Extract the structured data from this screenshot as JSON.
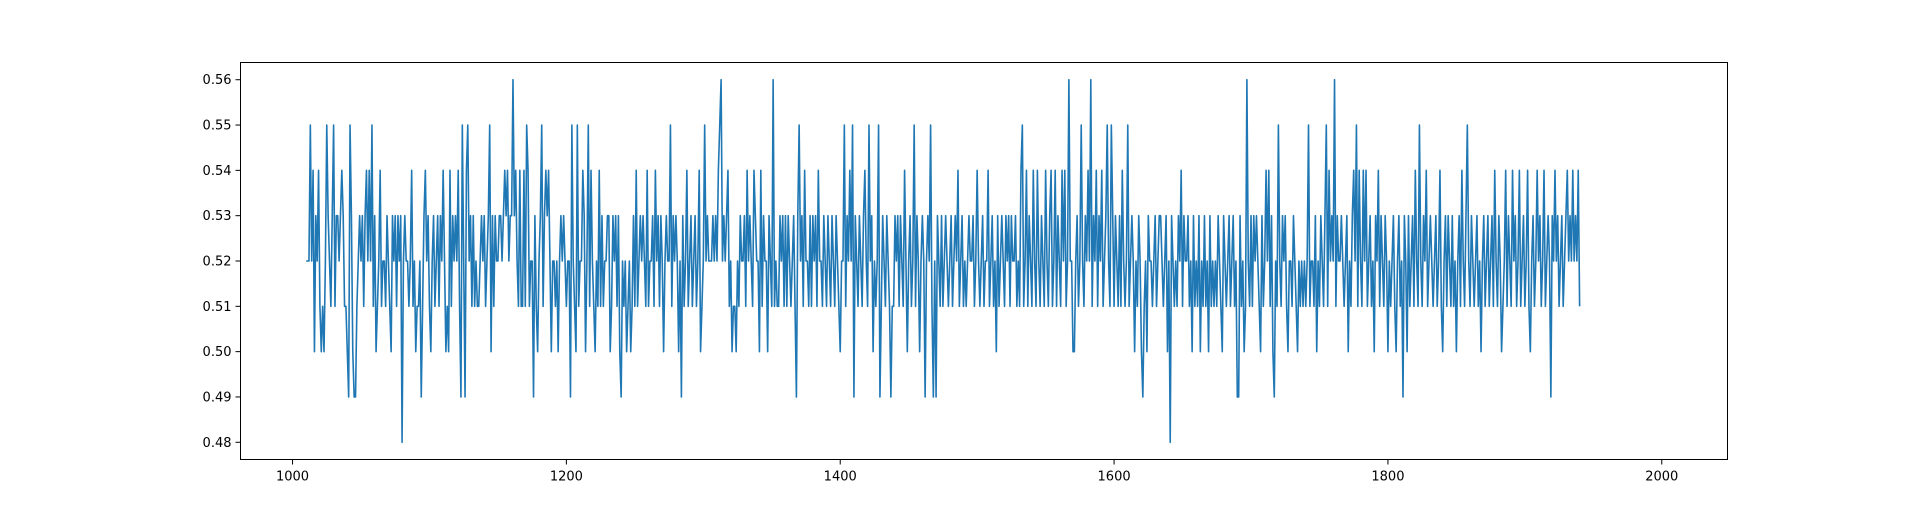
{
  "chart_data": {
    "type": "line",
    "title": "",
    "xlabel": "",
    "ylabel": "",
    "xlim": [
      962,
      2048
    ],
    "ylim": [
      0.4762,
      0.5638
    ],
    "grid": false,
    "legend": "none",
    "xticks": [
      1000,
      1200,
      1400,
      1600,
      1800,
      2000
    ],
    "yticks": [
      0.48,
      0.49,
      0.5,
      0.51,
      0.52,
      0.53,
      0.54,
      0.55,
      0.56
    ],
    "xtick_labels": [
      "1000",
      "1200",
      "1400",
      "1600",
      "1800",
      "2000"
    ],
    "ytick_labels": [
      "0.48",
      "0.49",
      "0.50",
      "0.51",
      "0.52",
      "0.53",
      "0.54",
      "0.55",
      "0.56"
    ],
    "series": [
      {
        "color": "#1f77b4",
        "x_start": 1010,
        "x_step": 1,
        "values": [
          0.52,
          0.52,
          0.52,
          0.55,
          0.52,
          0.54,
          0.5,
          0.53,
          0.52,
          0.54,
          0.51,
          0.5,
          0.51,
          0.5,
          0.52,
          0.55,
          0.53,
          0.52,
          0.51,
          0.53,
          0.55,
          0.51,
          0.53,
          0.53,
          0.52,
          0.53,
          0.54,
          0.53,
          0.51,
          0.51,
          0.5,
          0.49,
          0.55,
          0.53,
          0.5,
          0.49,
          0.49,
          0.51,
          0.52,
          0.53,
          0.52,
          0.53,
          0.51,
          0.53,
          0.54,
          0.52,
          0.54,
          0.52,
          0.55,
          0.51,
          0.53,
          0.5,
          0.51,
          0.52,
          0.54,
          0.51,
          0.52,
          0.52,
          0.51,
          0.53,
          0.52,
          0.51,
          0.5,
          0.53,
          0.52,
          0.53,
          0.51,
          0.53,
          0.52,
          0.53,
          0.48,
          0.52,
          0.53,
          0.52,
          0.52,
          0.51,
          0.52,
          0.54,
          0.51,
          0.52,
          0.5,
          0.51,
          0.51,
          0.52,
          0.49,
          0.51,
          0.53,
          0.54,
          0.52,
          0.53,
          0.51,
          0.5,
          0.52,
          0.53,
          0.51,
          0.52,
          0.53,
          0.51,
          0.53,
          0.52,
          0.54,
          0.52,
          0.5,
          0.51,
          0.5,
          0.54,
          0.51,
          0.53,
          0.52,
          0.53,
          0.52,
          0.54,
          0.51,
          0.49,
          0.55,
          0.52,
          0.49,
          0.54,
          0.55,
          0.52,
          0.53,
          0.51,
          0.53,
          0.51,
          0.52,
          0.51,
          0.51,
          0.52,
          0.53,
          0.52,
          0.53,
          0.51,
          0.52,
          0.53,
          0.55,
          0.5,
          0.53,
          0.51,
          0.53,
          0.52,
          0.52,
          0.53,
          0.53,
          0.52,
          0.53,
          0.54,
          0.53,
          0.54,
          0.52,
          0.53,
          0.53,
          0.56,
          0.53,
          0.54,
          0.52,
          0.51,
          0.54,
          0.51,
          0.51,
          0.54,
          0.51,
          0.55,
          0.54,
          0.51,
          0.52,
          0.52,
          0.49,
          0.53,
          0.51,
          0.5,
          0.52,
          0.53,
          0.55,
          0.51,
          0.53,
          0.54,
          0.53,
          0.54,
          0.52,
          0.5,
          0.52,
          0.52,
          0.51,
          0.52,
          0.5,
          0.52,
          0.53,
          0.52,
          0.53,
          0.52,
          0.51,
          0.52,
          0.52,
          0.49,
          0.55,
          0.52,
          0.51,
          0.5,
          0.55,
          0.51,
          0.52,
          0.52,
          0.54,
          0.53,
          0.5,
          0.52,
          0.55,
          0.51,
          0.54,
          0.52,
          0.51,
          0.5,
          0.52,
          0.51,
          0.54,
          0.51,
          0.53,
          0.51,
          0.52,
          0.52,
          0.53,
          0.53,
          0.5,
          0.51,
          0.53,
          0.52,
          0.53,
          0.51,
          0.53,
          0.5,
          0.49,
          0.52,
          0.51,
          0.52,
          0.5,
          0.51,
          0.52,
          0.5,
          0.51,
          0.53,
          0.51,
          0.54,
          0.51,
          0.52,
          0.53,
          0.52,
          0.53,
          0.52,
          0.51,
          0.54,
          0.51,
          0.52,
          0.52,
          0.53,
          0.51,
          0.54,
          0.52,
          0.53,
          0.51,
          0.53,
          0.52,
          0.5,
          0.52,
          0.53,
          0.52,
          0.52,
          0.55,
          0.51,
          0.53,
          0.52,
          0.53,
          0.52,
          0.5,
          0.52,
          0.49,
          0.53,
          0.51,
          0.52,
          0.54,
          0.51,
          0.52,
          0.53,
          0.51,
          0.52,
          0.53,
          0.51,
          0.52,
          0.54,
          0.5,
          0.51,
          0.52,
          0.55,
          0.52,
          0.53,
          0.52,
          0.52,
          0.52,
          0.53,
          0.52,
          0.53,
          0.52,
          0.54,
          0.55,
          0.56,
          0.52,
          0.53,
          0.52,
          0.53,
          0.54,
          0.51,
          0.52,
          0.5,
          0.51,
          0.51,
          0.5,
          0.52,
          0.51,
          0.53,
          0.52,
          0.52,
          0.53,
          0.51,
          0.54,
          0.52,
          0.53,
          0.52,
          0.51,
          0.54,
          0.53,
          0.52,
          0.52,
          0.5,
          0.54,
          0.51,
          0.53,
          0.52,
          0.52,
          0.5,
          0.53,
          0.52,
          0.51,
          0.56,
          0.51,
          0.52,
          0.51,
          0.51,
          0.53,
          0.52,
          0.53,
          0.51,
          0.53,
          0.51,
          0.53,
          0.52,
          0.51,
          0.52,
          0.53,
          0.51,
          0.49,
          0.53,
          0.55,
          0.52,
          0.53,
          0.51,
          0.54,
          0.52,
          0.52,
          0.51,
          0.53,
          0.51,
          0.53,
          0.52,
          0.53,
          0.51,
          0.54,
          0.52,
          0.52,
          0.51,
          0.53,
          0.52,
          0.51,
          0.53,
          0.52,
          0.51,
          0.53,
          0.52,
          0.51,
          0.53,
          0.52,
          0.51,
          0.5,
          0.52,
          0.52,
          0.55,
          0.51,
          0.53,
          0.52,
          0.54,
          0.52,
          0.55,
          0.49,
          0.53,
          0.52,
          0.51,
          0.53,
          0.52,
          0.51,
          0.53,
          0.54,
          0.52,
          0.51,
          0.55,
          0.52,
          0.53,
          0.5,
          0.52,
          0.51,
          0.52,
          0.55,
          0.49,
          0.51,
          0.53,
          0.52,
          0.51,
          0.53,
          0.52,
          0.51,
          0.49,
          0.51,
          0.51,
          0.53,
          0.52,
          0.53,
          0.51,
          0.53,
          0.52,
          0.51,
          0.54,
          0.52,
          0.5,
          0.52,
          0.53,
          0.51,
          0.52,
          0.55,
          0.51,
          0.53,
          0.52,
          0.5,
          0.52,
          0.53,
          0.52,
          0.49,
          0.52,
          0.53,
          0.52,
          0.55,
          0.51,
          0.49,
          0.52,
          0.49,
          0.53,
          0.52,
          0.51,
          0.53,
          0.51,
          0.52,
          0.53,
          0.52,
          0.51,
          0.52,
          0.53,
          0.51,
          0.52,
          0.53,
          0.52,
          0.54,
          0.51,
          0.52,
          0.53,
          0.51,
          0.52,
          0.51,
          0.52,
          0.53,
          0.52,
          0.52,
          0.53,
          0.51,
          0.52,
          0.54,
          0.52,
          0.51,
          0.52,
          0.53,
          0.51,
          0.52,
          0.52,
          0.54,
          0.51,
          0.52,
          0.53,
          0.51,
          0.52,
          0.5,
          0.53,
          0.51,
          0.52,
          0.53,
          0.52,
          0.51,
          0.53,
          0.52,
          0.53,
          0.51,
          0.53,
          0.52,
          0.52,
          0.53,
          0.51,
          0.52,
          0.51,
          0.54,
          0.55,
          0.51,
          0.52,
          0.54,
          0.51,
          0.53,
          0.52,
          0.51,
          0.54,
          0.52,
          0.51,
          0.54,
          0.52,
          0.51,
          0.53,
          0.52,
          0.51,
          0.54,
          0.52,
          0.51,
          0.53,
          0.54,
          0.51,
          0.52,
          0.54,
          0.51,
          0.53,
          0.52,
          0.51,
          0.54,
          0.52,
          0.54,
          0.51,
          0.52,
          0.56,
          0.52,
          0.52,
          0.5,
          0.5,
          0.52,
          0.53,
          0.51,
          0.52,
          0.55,
          0.52,
          0.51,
          0.53,
          0.52,
          0.54,
          0.52,
          0.56,
          0.51,
          0.53,
          0.52,
          0.54,
          0.51,
          0.53,
          0.52,
          0.54,
          0.51,
          0.52,
          0.53,
          0.55,
          0.52,
          0.51,
          0.55,
          0.53,
          0.51,
          0.53,
          0.52,
          0.51,
          0.53,
          0.51,
          0.54,
          0.52,
          0.51,
          0.52,
          0.55,
          0.51,
          0.52,
          0.53,
          0.52,
          0.5,
          0.52,
          0.51,
          0.53,
          0.52,
          0.5,
          0.49,
          0.51,
          0.52,
          0.5,
          0.53,
          0.52,
          0.52,
          0.51,
          0.52,
          0.53,
          0.51,
          0.52,
          0.53,
          0.53,
          0.52,
          0.51,
          0.52,
          0.53,
          0.5,
          0.52,
          0.48,
          0.53,
          0.52,
          0.51,
          0.52,
          0.51,
          0.53,
          0.52,
          0.54,
          0.51,
          0.53,
          0.52,
          0.52,
          0.53,
          0.51,
          0.52,
          0.5,
          0.53,
          0.51,
          0.52,
          0.51,
          0.53,
          0.5,
          0.52,
          0.51,
          0.53,
          0.51,
          0.52,
          0.5,
          0.53,
          0.51,
          0.52,
          0.51,
          0.52,
          0.51,
          0.53,
          0.52,
          0.51,
          0.5,
          0.53,
          0.52,
          0.51,
          0.52,
          0.53,
          0.51,
          0.52,
          0.53,
          0.51,
          0.52,
          0.49,
          0.49,
          0.53,
          0.51,
          0.52,
          0.5,
          0.51,
          0.56,
          0.52,
          0.51,
          0.53,
          0.51,
          0.53,
          0.52,
          0.53,
          0.52,
          0.51,
          0.5,
          0.53,
          0.51,
          0.52,
          0.54,
          0.52,
          0.54,
          0.51,
          0.53,
          0.5,
          0.49,
          0.52,
          0.51,
          0.55,
          0.52,
          0.51,
          0.53,
          0.52,
          0.53,
          0.51,
          0.5,
          0.52,
          0.52,
          0.51,
          0.53,
          0.52,
          0.51,
          0.5,
          0.52,
          0.51,
          0.52,
          0.51,
          0.52,
          0.51,
          0.52,
          0.55,
          0.51,
          0.52,
          0.52,
          0.51,
          0.53,
          0.5,
          0.52,
          0.51,
          0.53,
          0.52,
          0.51,
          0.53,
          0.55,
          0.51,
          0.54,
          0.52,
          0.53,
          0.52,
          0.56,
          0.51,
          0.53,
          0.52,
          0.52,
          0.53,
          0.52,
          0.51,
          0.52,
          0.53,
          0.5,
          0.52,
          0.51,
          0.53,
          0.54,
          0.52,
          0.55,
          0.51,
          0.54,
          0.52,
          0.51,
          0.54,
          0.52,
          0.54,
          0.51,
          0.52,
          0.53,
          0.51,
          0.52,
          0.5,
          0.53,
          0.52,
          0.54,
          0.51,
          0.53,
          0.52,
          0.51,
          0.53,
          0.52,
          0.5,
          0.52,
          0.51,
          0.52,
          0.53,
          0.51,
          0.5,
          0.52,
          0.53,
          0.51,
          0.52,
          0.49,
          0.53,
          0.52,
          0.5,
          0.53,
          0.51,
          0.52,
          0.53,
          0.51,
          0.54,
          0.52,
          0.51,
          0.55,
          0.52,
          0.51,
          0.53,
          0.52,
          0.54,
          0.51,
          0.52,
          0.53,
          0.52,
          0.51,
          0.52,
          0.53,
          0.51,
          0.52,
          0.54,
          0.51,
          0.5,
          0.52,
          0.53,
          0.51,
          0.53,
          0.52,
          0.51,
          0.53,
          0.51,
          0.52,
          0.5,
          0.52,
          0.53,
          0.51,
          0.54,
          0.52,
          0.51,
          0.53,
          0.55,
          0.52,
          0.51,
          0.53,
          0.52,
          0.51,
          0.52,
          0.53,
          0.51,
          0.52,
          0.5,
          0.52,
          0.53,
          0.51,
          0.52,
          0.53,
          0.51,
          0.52,
          0.53,
          0.51,
          0.54,
          0.52,
          0.51,
          0.53,
          0.52,
          0.5,
          0.51,
          0.52,
          0.54,
          0.51,
          0.53,
          0.52,
          0.51,
          0.54,
          0.52,
          0.53,
          0.51,
          0.52,
          0.54,
          0.51,
          0.52,
          0.53,
          0.51,
          0.52,
          0.54,
          0.51,
          0.5,
          0.52,
          0.53,
          0.51,
          0.52,
          0.54,
          0.52,
          0.53,
          0.51,
          0.52,
          0.54,
          0.51,
          0.52,
          0.53,
          0.52,
          0.49,
          0.53,
          0.52,
          0.54,
          0.52,
          0.53,
          0.51,
          0.52,
          0.53,
          0.51,
          0.52,
          0.53,
          0.54,
          0.52,
          0.53,
          0.52,
          0.54,
          0.52,
          0.53,
          0.52,
          0.54,
          0.51
        ]
      }
    ]
  }
}
